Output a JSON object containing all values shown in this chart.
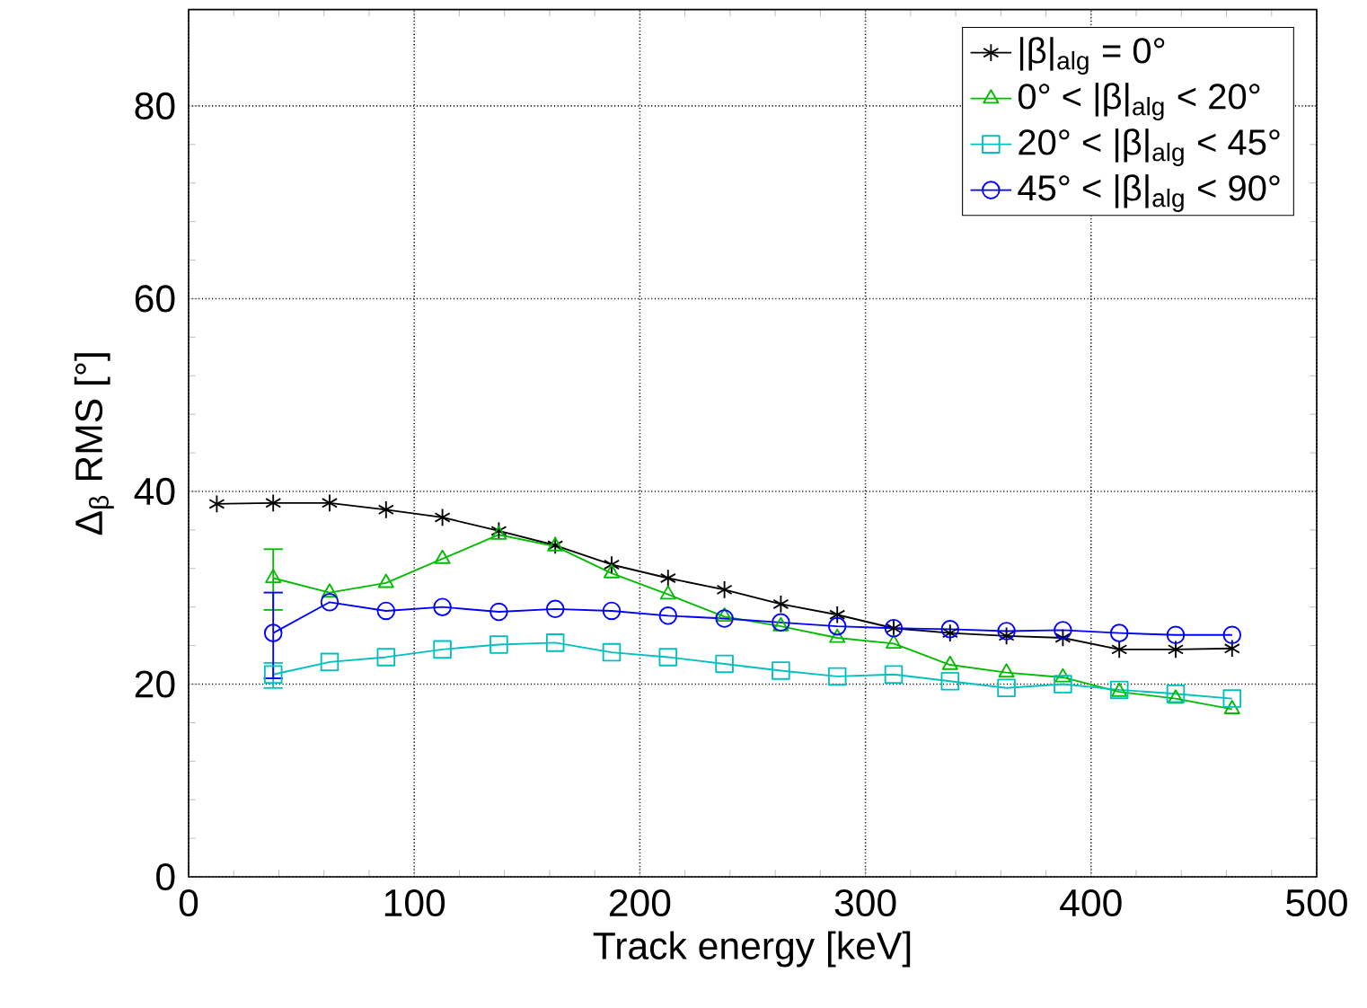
{
  "chart_data": {
    "type": "line",
    "xlabel": "Track energy [keV]",
    "ylabel": "Δ$_{β}$ RMS [°]",
    "xlim": [
      0,
      500
    ],
    "xticks": [
      0,
      100,
      200,
      300,
      400,
      500
    ],
    "ylim": [
      0,
      90
    ],
    "yticks": [
      0,
      20,
      40,
      60,
      80
    ],
    "grid": true,
    "legend": "top right",
    "line_style": "solid",
    "series": [
      {
        "name": "|β|$_{alg}$ = 0°",
        "color": "#000000",
        "marker": "cross",
        "x": [
          12.5,
          37.5,
          62.5,
          87.5,
          112.5,
          137.5,
          162.5,
          187.5,
          212.5,
          237.5,
          262.5,
          287.5,
          312.5,
          337.5,
          362.5,
          387.5,
          412.5,
          437.5,
          462.5
        ],
        "values": [
          38.7,
          38.8,
          38.8,
          38.1,
          37.3,
          35.9,
          34.4,
          32.4,
          31.0,
          29.8,
          28.3,
          27.2,
          25.8,
          25.3,
          25.0,
          24.8,
          23.6,
          23.6,
          23.7
        ]
      },
      {
        "name": "0° < |β|$_{alg}$ < 20°",
        "color": "#00bb00",
        "marker": "triangle",
        "x": [
          37.5,
          62.5,
          87.5,
          112.5,
          137.5,
          162.5,
          187.5,
          212.5,
          237.5,
          262.5,
          287.5,
          312.5,
          337.5,
          362.5,
          387.5,
          412.5,
          437.5,
          462.5
        ],
        "values": [
          31.0,
          29.5,
          30.5,
          33.0,
          35.5,
          34.3,
          31.5,
          29.3,
          27.0,
          26.0,
          24.8,
          24.2,
          22.0,
          21.2,
          20.7,
          19.2,
          18.5,
          17.4
        ],
        "errors": [
          [
            27.7,
            34.0
          ],
          null,
          null,
          null,
          null,
          null,
          null,
          null,
          null,
          null,
          null,
          null,
          null,
          null,
          null,
          null,
          null,
          null
        ]
      },
      {
        "name": "20° < |β|$_{alg}$ < 45°",
        "color": "#00bfbf",
        "marker": "square",
        "x": [
          37.5,
          62.5,
          87.5,
          112.5,
          137.5,
          162.5,
          187.5,
          212.5,
          237.5,
          262.5,
          287.5,
          312.5,
          337.5,
          362.5,
          387.5,
          412.5,
          437.5,
          462.5
        ],
        "values": [
          21.0,
          22.3,
          22.8,
          23.6,
          24.1,
          24.3,
          23.3,
          22.8,
          22.1,
          21.4,
          20.8,
          21.0,
          20.3,
          19.6,
          20.0,
          19.4,
          19.0,
          18.5
        ],
        "errors": [
          [
            19.6,
            22.2
          ],
          null,
          null,
          null,
          null,
          null,
          null,
          null,
          null,
          null,
          null,
          null,
          null,
          null,
          null,
          null,
          null,
          null
        ]
      },
      {
        "name": "45° < |β|$_{alg}$ < 90°",
        "color": "#0000ff",
        "marker": "circle",
        "x": [
          37.5,
          62.5,
          87.5,
          112.5,
          137.5,
          162.5,
          187.5,
          212.5,
          237.5,
          262.5,
          287.5,
          312.5,
          337.5,
          362.5,
          387.5,
          412.5,
          437.5,
          462.5
        ],
        "values": [
          25.3,
          28.5,
          27.6,
          28.0,
          27.5,
          27.8,
          27.6,
          27.1,
          26.8,
          26.4,
          26.0,
          25.8,
          25.7,
          25.5,
          25.6,
          25.3,
          25.1,
          25.1
        ],
        "errors": [
          [
            20.6,
            29.5
          ],
          null,
          null,
          null,
          null,
          null,
          null,
          null,
          null,
          null,
          null,
          null,
          null,
          null,
          null,
          null,
          null,
          null
        ]
      }
    ]
  }
}
